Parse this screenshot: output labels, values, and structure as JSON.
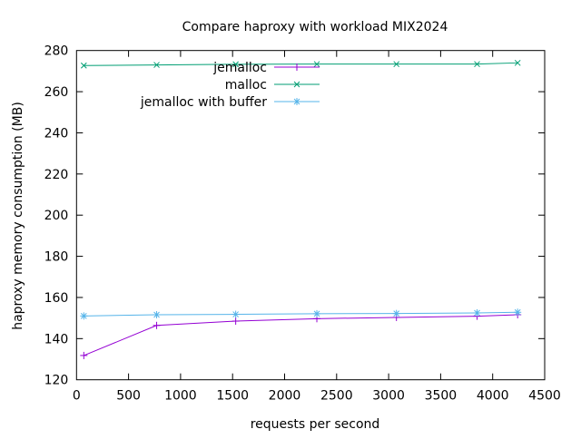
{
  "chart_data": {
    "type": "line",
    "title": "Compare haproxy with workload MIX2024",
    "xlabel": "requests per second",
    "ylabel": "haproxy memory consumption (MB)",
    "xlim": [
      0,
      4500
    ],
    "ylim": [
      120,
      280
    ],
    "xticks": [
      0,
      500,
      1000,
      1500,
      2000,
      2500,
      3000,
      3500,
      4000,
      4500
    ],
    "yticks": [
      120,
      140,
      160,
      180,
      200,
      220,
      240,
      260,
      280
    ],
    "grid": false,
    "legend_position": "top-left",
    "series": [
      {
        "name": "jemalloc",
        "color": "#9400d3",
        "marker": "plus",
        "x": [
          70,
          770,
          1530,
          2310,
          3075,
          3850,
          4240
        ],
        "y": [
          131.8,
          146.4,
          148.5,
          149.7,
          150.3,
          150.9,
          151.6
        ]
      },
      {
        "name": "malloc",
        "color": "#009e73",
        "marker": "cross",
        "x": [
          70,
          770,
          1530,
          2310,
          3075,
          3850,
          4240
        ],
        "y": [
          272.7,
          273.0,
          273.3,
          273.4,
          273.4,
          273.4,
          274.0
        ]
      },
      {
        "name": "jemalloc with buffer",
        "color": "#56b4e9",
        "marker": "star",
        "x": [
          70,
          770,
          1530,
          2310,
          3075,
          3850,
          4240
        ],
        "y": [
          151.0,
          151.6,
          151.8,
          152.1,
          152.2,
          152.5,
          152.8
        ]
      }
    ]
  }
}
